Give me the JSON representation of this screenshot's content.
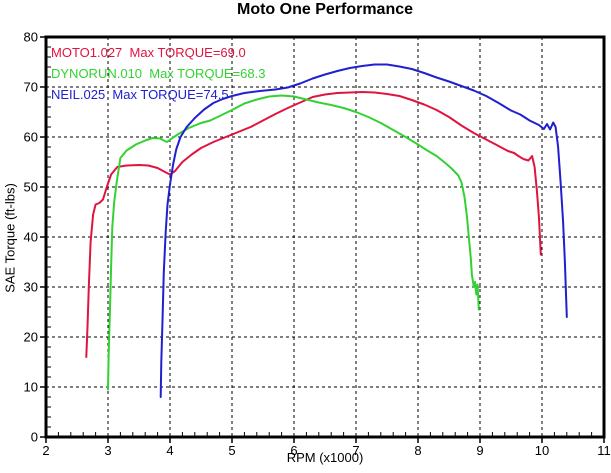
{
  "page": {
    "title": "Moto One Performance"
  },
  "chart_data": {
    "type": "line",
    "title": "Moto One Performance",
    "xlabel": "RPM (x1000)",
    "ylabel": "SAE Torque (ft-lbs)",
    "xlim": [
      2,
      11
    ],
    "ylim": [
      0,
      80
    ],
    "xticks": [
      2,
      3,
      4,
      5,
      6,
      7,
      8,
      9,
      10,
      11
    ],
    "yticks": [
      0,
      10,
      20,
      30,
      40,
      50,
      60,
      70,
      80
    ],
    "x_minor_step": 0.2,
    "y_minor_step": 2,
    "grid": true,
    "grid_style": "dashed",
    "grid_color": "#000000",
    "frame_color": "#000000",
    "background_color": "#ffffff",
    "legend_position": "top-left",
    "series": [
      {
        "name": "MOTO1.027",
        "legend": "MOTO1.027  Max TORQUE=69.0",
        "max_torque": 69.0,
        "color": "#e01440",
        "points": [
          [
            2.65,
            16
          ],
          [
            2.67,
            22
          ],
          [
            2.69,
            30
          ],
          [
            2.72,
            39
          ],
          [
            2.76,
            44.5
          ],
          [
            2.8,
            46.5
          ],
          [
            2.86,
            46.8
          ],
          [
            2.92,
            47.5
          ],
          [
            2.98,
            50
          ],
          [
            3.05,
            52.5
          ],
          [
            3.15,
            54
          ],
          [
            3.3,
            54.3
          ],
          [
            3.5,
            54.4
          ],
          [
            3.65,
            54.3
          ],
          [
            3.8,
            53.8
          ],
          [
            3.92,
            53
          ],
          [
            4.0,
            52.5
          ],
          [
            4.08,
            53.2
          ],
          [
            4.2,
            55
          ],
          [
            4.35,
            56.5
          ],
          [
            4.5,
            57.8
          ],
          [
            4.7,
            59
          ],
          [
            4.9,
            60
          ],
          [
            5.1,
            61
          ],
          [
            5.3,
            62
          ],
          [
            5.5,
            63.3
          ],
          [
            5.7,
            64.6
          ],
          [
            5.9,
            65.8
          ],
          [
            6.1,
            66.9
          ],
          [
            6.3,
            68
          ],
          [
            6.5,
            68.5
          ],
          [
            6.7,
            68.8
          ],
          [
            6.9,
            68.9
          ],
          [
            7.1,
            69
          ],
          [
            7.3,
            68.9
          ],
          [
            7.5,
            68.6
          ],
          [
            7.7,
            68.2
          ],
          [
            7.9,
            67.4
          ],
          [
            8.1,
            66.5
          ],
          [
            8.3,
            65.4
          ],
          [
            8.5,
            64
          ],
          [
            8.7,
            62.3
          ],
          [
            8.9,
            60.8
          ],
          [
            9.1,
            59.5
          ],
          [
            9.3,
            58.2
          ],
          [
            9.45,
            57.2
          ],
          [
            9.55,
            56.8
          ],
          [
            9.62,
            56.2
          ],
          [
            9.7,
            55.6
          ],
          [
            9.78,
            55.3
          ],
          [
            9.84,
            56.2
          ],
          [
            9.88,
            54
          ],
          [
            9.92,
            49
          ],
          [
            9.95,
            44
          ],
          [
            9.98,
            36.5
          ]
        ]
      },
      {
        "name": "DYNORUN.010",
        "legend": "DYNORUN.010  Max TORQUE=68.3",
        "max_torque": 68.3,
        "color": "#32d232",
        "points": [
          [
            3.0,
            9.5
          ],
          [
            3.01,
            16
          ],
          [
            3.03,
            25
          ],
          [
            3.05,
            34
          ],
          [
            3.07,
            42
          ],
          [
            3.1,
            47
          ],
          [
            3.14,
            51
          ],
          [
            3.2,
            55.8
          ],
          [
            3.3,
            57.3
          ],
          [
            3.45,
            58.5
          ],
          [
            3.6,
            59.3
          ],
          [
            3.72,
            59.8
          ],
          [
            3.84,
            59.7
          ],
          [
            3.95,
            59
          ],
          [
            4.05,
            59.9
          ],
          [
            4.15,
            60.7
          ],
          [
            4.3,
            61.8
          ],
          [
            4.5,
            62.8
          ],
          [
            4.65,
            63.3
          ],
          [
            4.8,
            64.2
          ],
          [
            5.0,
            65.4
          ],
          [
            5.2,
            66.7
          ],
          [
            5.4,
            67.5
          ],
          [
            5.6,
            68.1
          ],
          [
            5.8,
            68.3
          ],
          [
            6.0,
            68.1
          ],
          [
            6.2,
            67.5
          ],
          [
            6.4,
            66.9
          ],
          [
            6.6,
            66.4
          ],
          [
            6.8,
            65.8
          ],
          [
            7.0,
            65
          ],
          [
            7.2,
            64
          ],
          [
            7.4,
            62.8
          ],
          [
            7.6,
            61.4
          ],
          [
            7.8,
            60
          ],
          [
            8.0,
            58.5
          ],
          [
            8.15,
            57.3
          ],
          [
            8.3,
            56.2
          ],
          [
            8.45,
            54.7
          ],
          [
            8.55,
            53.6
          ],
          [
            8.65,
            52.3
          ],
          [
            8.7,
            51
          ],
          [
            8.75,
            48
          ],
          [
            8.79,
            44
          ],
          [
            8.82,
            40
          ],
          [
            8.85,
            36
          ],
          [
            8.87,
            32.5
          ],
          [
            8.9,
            30
          ],
          [
            8.92,
            31
          ],
          [
            8.94,
            28.5
          ],
          [
            8.96,
            30.5
          ],
          [
            8.98,
            25.5
          ]
        ]
      },
      {
        "name": "NEIL.025",
        "legend": "NEIL.025  Max TORQUE=74.5",
        "max_torque": 74.5,
        "color": "#2020d0",
        "points": [
          [
            3.85,
            8
          ],
          [
            3.86,
            15
          ],
          [
            3.88,
            24
          ],
          [
            3.9,
            33
          ],
          [
            3.93,
            41
          ],
          [
            3.96,
            46.5
          ],
          [
            4.0,
            50.5
          ],
          [
            4.05,
            54.5
          ],
          [
            4.1,
            57.5
          ],
          [
            4.17,
            60
          ],
          [
            4.27,
            62
          ],
          [
            4.4,
            63.8
          ],
          [
            4.55,
            65.5
          ],
          [
            4.7,
            66.8
          ],
          [
            4.85,
            67.6
          ],
          [
            5.0,
            68.2
          ],
          [
            5.2,
            68.8
          ],
          [
            5.45,
            69.2
          ],
          [
            5.7,
            69.5
          ],
          [
            5.9,
            69.9
          ],
          [
            6.1,
            70.7
          ],
          [
            6.3,
            71.7
          ],
          [
            6.5,
            72.5
          ],
          [
            6.7,
            73.2
          ],
          [
            6.9,
            73.8
          ],
          [
            7.1,
            74.2
          ],
          [
            7.3,
            74.5
          ],
          [
            7.5,
            74.5
          ],
          [
            7.7,
            74.1
          ],
          [
            7.9,
            73.6
          ],
          [
            8.1,
            72.8
          ],
          [
            8.3,
            71.9
          ],
          [
            8.5,
            71.1
          ],
          [
            8.7,
            70.2
          ],
          [
            8.9,
            69.3
          ],
          [
            9.1,
            68.2
          ],
          [
            9.3,
            66.8
          ],
          [
            9.5,
            65.3
          ],
          [
            9.65,
            64.5
          ],
          [
            9.8,
            63.3
          ],
          [
            9.95,
            62.4
          ],
          [
            10.03,
            61.6
          ],
          [
            10.08,
            62.6
          ],
          [
            10.13,
            61.5
          ],
          [
            10.18,
            62.9
          ],
          [
            10.22,
            62
          ],
          [
            10.26,
            58
          ],
          [
            10.3,
            51
          ],
          [
            10.34,
            43
          ],
          [
            10.37,
            35
          ],
          [
            10.4,
            24
          ]
        ]
      }
    ]
  }
}
